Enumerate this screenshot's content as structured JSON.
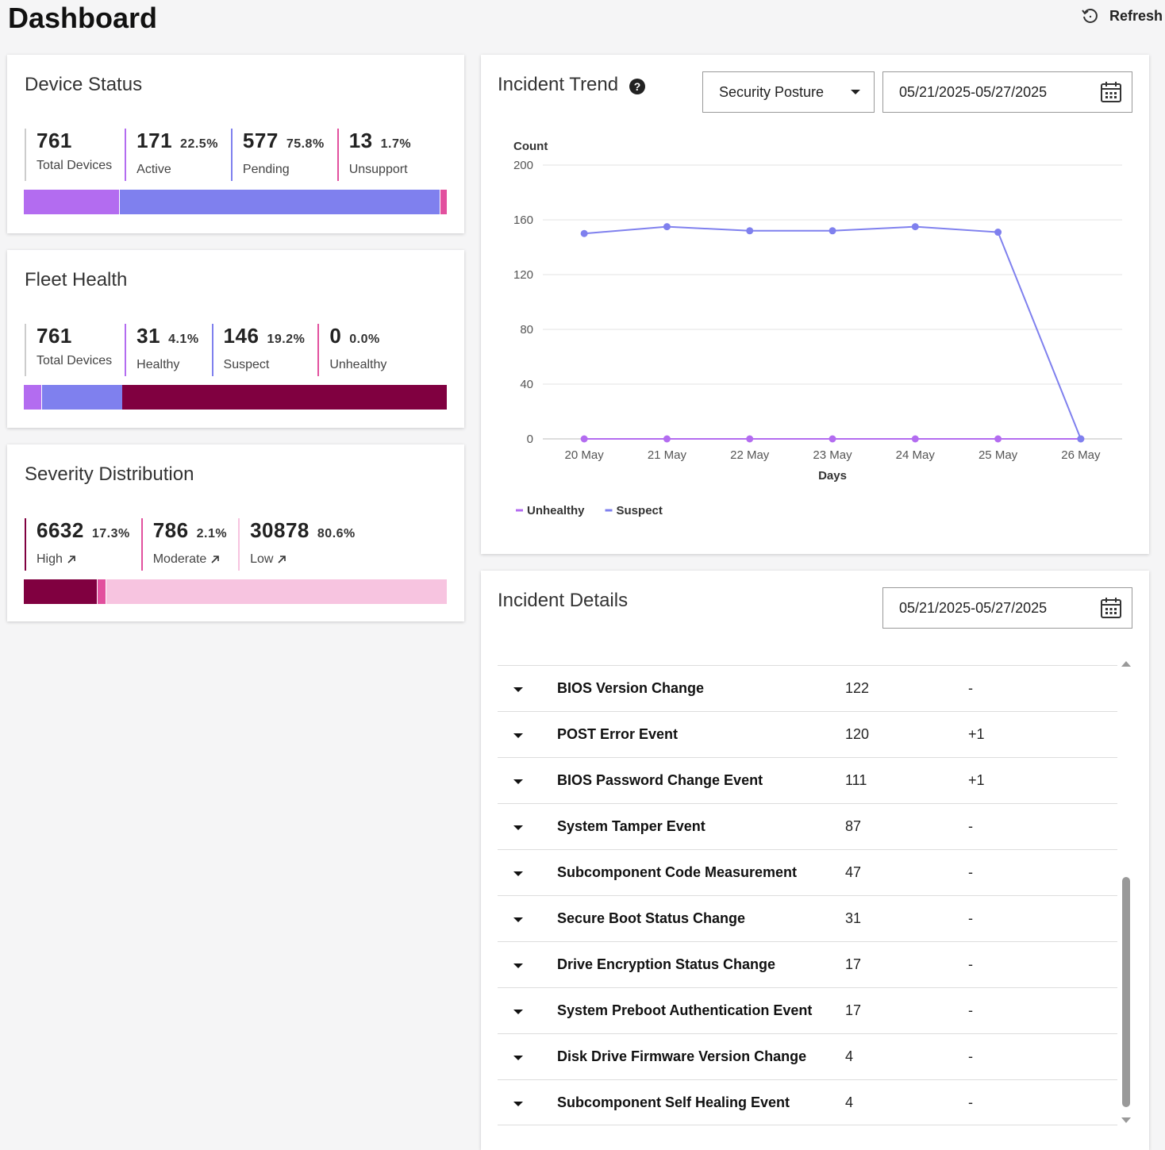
{
  "header": {
    "title": "Dashboard",
    "refresh": "Refresh"
  },
  "device_status": {
    "title": "Device Status",
    "total": {
      "value": 761,
      "label": "Total Devices"
    },
    "segments": [
      {
        "value": 171,
        "percent": "22.5%",
        "label": "Active",
        "color": "#b36cf0"
      },
      {
        "value": 577,
        "percent": "75.8%",
        "label": "Pending",
        "color": "#7f80ee"
      },
      {
        "value": 13,
        "percent": "1.7%",
        "label": "Unsupport",
        "color": "#e2509e"
      }
    ]
  },
  "fleet_health": {
    "title": "Fleet Health",
    "total": {
      "value": 761,
      "label": "Total Devices"
    },
    "remainder_color": "#800040",
    "segments": [
      {
        "value": 31,
        "percent": "4.1%",
        "label": "Healthy",
        "color": "#b36cf0"
      },
      {
        "value": 146,
        "percent": "19.2%",
        "label": "Suspect",
        "color": "#7f80ee"
      },
      {
        "value": 0,
        "percent": "0.0%",
        "label": "Unhealthy",
        "color": "#e2509e"
      }
    ]
  },
  "severity_distribution": {
    "title": "Severity Distribution",
    "links": true,
    "segments": [
      {
        "value": 6632,
        "percent": "17.3%",
        "label": "High",
        "color": "#800040"
      },
      {
        "value": 786,
        "percent": "2.1%",
        "label": "Moderate",
        "color": "#e2509e"
      },
      {
        "value": 30878,
        "percent": "80.6%",
        "label": "Low",
        "color": "#f7c4e0"
      }
    ]
  },
  "incident_trend": {
    "title": "Incident Trend",
    "help": "?",
    "filter": "Security Posture",
    "date_range": "05/21/2025-05/27/2025"
  },
  "chart_data": {
    "type": "line",
    "ylabel": "Count",
    "xlabel": "Days",
    "categories": [
      "20 May",
      "21 May",
      "22 May",
      "23 May",
      "24 May",
      "25 May",
      "26 May"
    ],
    "series": [
      {
        "name": "Unhealthy",
        "color": "#b36cf0",
        "values": [
          0,
          0,
          0,
          0,
          0,
          0,
          0
        ]
      },
      {
        "name": "Suspect",
        "color": "#7f80ee",
        "values": [
          150,
          155,
          152,
          152,
          155,
          151,
          0
        ]
      }
    ],
    "ylim": [
      0,
      200
    ],
    "yticks": [
      0,
      40,
      80,
      120,
      160,
      200
    ],
    "grid": true,
    "legend": "bottom-left"
  },
  "incident_details": {
    "title": "Incident Details",
    "date_range": "05/21/2025-05/27/2025",
    "rows": [
      {
        "name": "BIOS Version Change",
        "count": 122,
        "change": "-"
      },
      {
        "name": "POST Error Event",
        "count": 120,
        "change": "+1"
      },
      {
        "name": "BIOS Password Change Event",
        "count": 111,
        "change": "+1"
      },
      {
        "name": "System Tamper Event",
        "count": 87,
        "change": "-"
      },
      {
        "name": "Subcomponent Code Measurement",
        "count": 47,
        "change": "-"
      },
      {
        "name": "Secure Boot Status Change",
        "count": 31,
        "change": "-"
      },
      {
        "name": "Drive Encryption Status Change",
        "count": 17,
        "change": "-"
      },
      {
        "name": "System Preboot Authentication Event",
        "count": 17,
        "change": "-"
      },
      {
        "name": "Disk Drive Firmware Version Change",
        "count": 4,
        "change": "-"
      },
      {
        "name": "Subcomponent Self Healing Event",
        "count": 4,
        "change": "-"
      }
    ]
  }
}
